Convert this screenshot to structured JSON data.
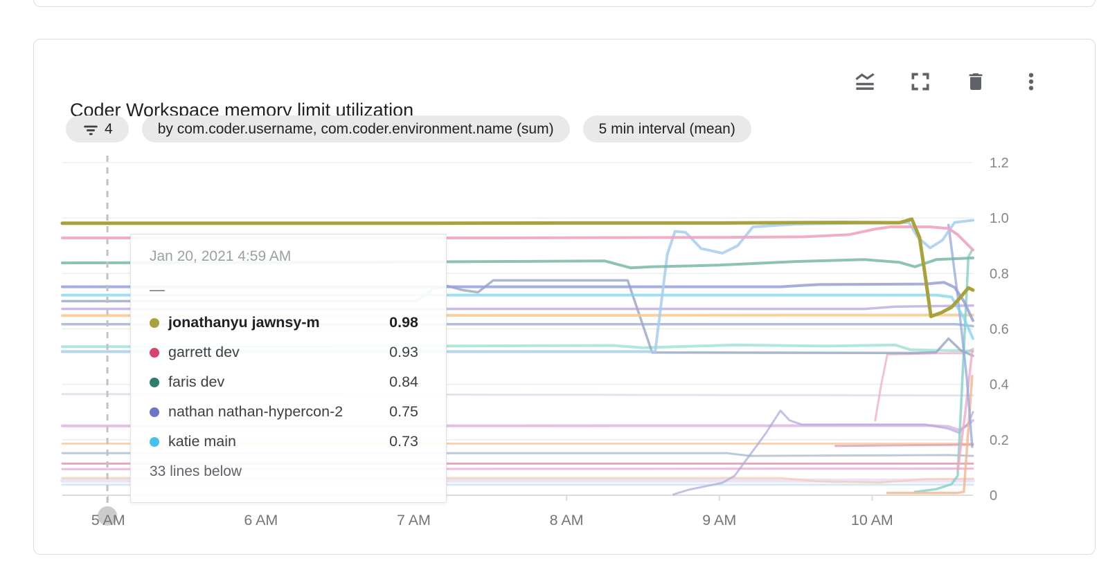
{
  "card": {
    "title": "Coder Workspace memory limit utilization",
    "chips": {
      "filter_count": "4",
      "group_by": "by com.coder.username, com.coder.environment.name (sum)",
      "interval": "5 min interval (mean)"
    },
    "toolbar": {
      "icons": [
        "chart-type-icon",
        "fullscreen-icon",
        "trash-icon",
        "more-vert-icon"
      ],
      "icon_color": "#5f6368"
    }
  },
  "tooltip": {
    "timestamp": "Jan 20, 2021 4:59 AM",
    "dash": "—",
    "rows": [
      {
        "label": "jonathanyu jawnsy-m",
        "value": "0.98",
        "color": "#a8a23c",
        "bold": true
      },
      {
        "label": "garrett dev",
        "value": "0.93",
        "color": "#d6446e",
        "bold": false
      },
      {
        "label": "faris dev",
        "value": "0.84",
        "color": "#2f7d6d",
        "bold": false
      },
      {
        "label": "nathan nathan-hypercon-2",
        "value": "0.75",
        "color": "#6a74c9",
        "bold": false
      },
      {
        "label": "katie main",
        "value": "0.73",
        "color": "#45c1f0",
        "bold": false
      }
    ],
    "footer": "33 lines below"
  },
  "chart_data": {
    "type": "line",
    "x_domain": [
      4.7,
      10.66
    ],
    "y_domain": [
      0,
      1.2
    ],
    "grid": true,
    "y_axis": {
      "side": "right",
      "ticks": [
        {
          "v": 0,
          "label": "0"
        },
        {
          "v": 0.2,
          "label": "0.2"
        },
        {
          "v": 0.4,
          "label": "0.4"
        },
        {
          "v": 0.6,
          "label": "0.6"
        },
        {
          "v": 0.8,
          "label": "0.8"
        },
        {
          "v": 1.0,
          "label": "1.0"
        },
        {
          "v": 1.2,
          "label": "1.2"
        }
      ]
    },
    "x_axis": {
      "ticks": [
        {
          "h": 5,
          "label": "5 AM"
        },
        {
          "h": 6,
          "label": "6 AM"
        },
        {
          "h": 7,
          "label": "7 AM"
        },
        {
          "h": 8,
          "label": "8 AM"
        },
        {
          "h": 9,
          "label": "9 AM"
        },
        {
          "h": 10,
          "label": "10 AM"
        }
      ]
    },
    "cursor": {
      "hour": 4.995,
      "style": "dashed"
    },
    "series": [
      {
        "name": "",
        "color": "#b9c3de",
        "width": 3,
        "opacity": 0.45,
        "points": [
          [
            4.7,
            0.365
          ],
          [
            10.66,
            0.36
          ]
        ]
      },
      {
        "name": "",
        "color": "#bcd9f2",
        "width": 3,
        "opacity": 0.6,
        "points": [
          [
            4.7,
            0.038
          ],
          [
            10.66,
            0.038
          ]
        ]
      },
      {
        "name": "",
        "color": "#d7cdf0",
        "width": 6,
        "opacity": 0.55,
        "points": [
          [
            4.7,
            0.053
          ],
          [
            10.66,
            0.053
          ]
        ]
      },
      {
        "name": "",
        "color": "#f6cdb4",
        "width": 3,
        "opacity": 0.8,
        "points": [
          [
            4.7,
            0.062
          ],
          [
            9.4,
            0.062
          ],
          [
            9.65,
            0.05
          ],
          [
            10.05,
            0.046
          ],
          [
            10.35,
            0.058
          ],
          [
            10.66,
            0.06
          ]
        ]
      },
      {
        "name": "",
        "color": "#eb9cd4",
        "width": 3,
        "opacity": 0.7,
        "points": [
          [
            4.7,
            0.094
          ],
          [
            10.66,
            0.096
          ]
        ]
      },
      {
        "name": "",
        "color": "#d486a0",
        "width": 3,
        "opacity": 0.7,
        "points": [
          [
            4.7,
            0.114
          ],
          [
            10.66,
            0.114
          ]
        ]
      },
      {
        "name": "",
        "color": "#a3b1cc",
        "width": 3,
        "opacity": 0.7,
        "points": [
          [
            4.7,
            0.152
          ],
          [
            9.05,
            0.152
          ],
          [
            9.2,
            0.142
          ],
          [
            10.5,
            0.145
          ],
          [
            10.66,
            0.142
          ]
        ]
      },
      {
        "name": "",
        "color": "#f6c89c",
        "width": 3,
        "opacity": 0.8,
        "points": [
          [
            4.7,
            0.186
          ],
          [
            10.66,
            0.186
          ]
        ]
      },
      {
        "name": "",
        "color": "#d890a8",
        "width": 3,
        "opacity": 0.7,
        "points": [
          [
            9.76,
            0.178
          ],
          [
            10.66,
            0.182
          ]
        ]
      },
      {
        "name": "",
        "color": "#d8a5da",
        "width": 4,
        "opacity": 0.7,
        "points": [
          [
            4.7,
            0.25
          ],
          [
            10.4,
            0.251
          ],
          [
            10.5,
            0.248
          ],
          [
            10.57,
            0.235
          ],
          [
            10.63,
            0.255
          ],
          [
            10.66,
            0.27
          ]
        ]
      },
      {
        "name": "",
        "color": "#a7a8dd",
        "width": 3,
        "opacity": 0.7,
        "points": [
          [
            8.7,
            0.003
          ],
          [
            8.8,
            0.02
          ],
          [
            9.02,
            0.045
          ],
          [
            9.1,
            0.07
          ],
          [
            9.3,
            0.22
          ],
          [
            9.4,
            0.305
          ],
          [
            9.46,
            0.27
          ],
          [
            9.54,
            0.255
          ],
          [
            10.35,
            0.255
          ],
          [
            10.5,
            0.24
          ],
          [
            10.57,
            0.225
          ],
          [
            10.63,
            0.26
          ],
          [
            10.66,
            0.3
          ]
        ]
      },
      {
        "name": "",
        "color": "#f0b0c8",
        "width": 3,
        "opacity": 0.8,
        "points": [
          [
            10.02,
            0.27
          ],
          [
            10.06,
            0.4
          ],
          [
            10.1,
            0.508
          ],
          [
            10.45,
            0.512
          ],
          [
            10.6,
            0.512
          ],
          [
            10.66,
            0.528
          ]
        ]
      },
      {
        "name": "",
        "color": "#93dfd2",
        "width": 4,
        "opacity": 0.75,
        "points": [
          [
            4.7,
            0.536
          ],
          [
            6.0,
            0.536
          ],
          [
            8.3,
            0.54
          ],
          [
            8.5,
            0.532
          ],
          [
            9.1,
            0.542
          ],
          [
            9.7,
            0.538
          ],
          [
            10.15,
            0.542
          ],
          [
            10.25,
            0.525
          ],
          [
            10.66,
            0.52
          ]
        ]
      },
      {
        "name": "",
        "color": "#8f9fbe",
        "width": 3.5,
        "opacity": 0.75,
        "points": [
          [
            4.7,
            0.7
          ],
          [
            7.02,
            0.7
          ],
          [
            7.12,
            0.742
          ],
          [
            7.22,
            0.755
          ],
          [
            7.32,
            0.74
          ],
          [
            7.42,
            0.732
          ],
          [
            7.52,
            0.775
          ],
          [
            8.4,
            0.775
          ],
          [
            8.56,
            0.515
          ],
          [
            10.25,
            0.513
          ],
          [
            10.42,
            0.516
          ],
          [
            10.5,
            0.565
          ],
          [
            10.58,
            0.523
          ],
          [
            10.66,
            0.503
          ]
        ]
      },
      {
        "name": "",
        "color": "#96aacf",
        "width": 3.5,
        "opacity": 0.75,
        "points": [
          [
            4.7,
            0.617
          ],
          [
            10.55,
            0.617
          ],
          [
            10.66,
            0.61
          ]
        ]
      },
      {
        "name": "",
        "color": "#f8c98e",
        "width": 4,
        "opacity": 0.85,
        "points": [
          [
            4.7,
            0.648
          ],
          [
            10.66,
            0.65
          ]
        ]
      },
      {
        "name": "",
        "color": "#b39ddb",
        "width": 3.5,
        "opacity": 0.7,
        "points": [
          [
            4.7,
            0.672
          ],
          [
            9.95,
            0.672
          ],
          [
            10.15,
            0.68
          ],
          [
            10.66,
            0.684
          ]
        ]
      },
      {
        "name": "",
        "color": "#82cfc6",
        "width": 3.5,
        "opacity": 0.8,
        "points": [
          [
            10.28,
            0.012
          ],
          [
            10.42,
            0.022
          ],
          [
            10.52,
            0.04
          ],
          [
            10.56,
            0.07
          ],
          [
            10.63,
            0.86
          ],
          [
            10.655,
            0.885
          ]
        ]
      },
      {
        "name": "",
        "color": "#f3b68c",
        "width": 3.5,
        "opacity": 0.8,
        "points": [
          [
            10.1,
            0.008
          ],
          [
            10.55,
            0.008
          ],
          [
            10.6,
            0.012
          ],
          [
            10.655,
            0.43
          ]
        ]
      },
      {
        "name": "",
        "color": "#eeaac6",
        "width": 3.5,
        "opacity": 0.8,
        "points": [
          [
            10.56,
            0.09
          ],
          [
            10.61,
            0.3
          ],
          [
            10.655,
            0.52
          ]
        ]
      },
      {
        "name": "",
        "color": "#93a7e0",
        "width": 3.5,
        "opacity": 0.75,
        "points": [
          [
            10.5,
            0.975
          ],
          [
            10.56,
            0.72
          ],
          [
            10.62,
            0.42
          ],
          [
            10.655,
            0.175
          ]
        ]
      },
      {
        "name": "katie main",
        "color": "#7fd4f0",
        "width": 4,
        "opacity": 0.75,
        "points": [
          [
            4.7,
            0.722
          ],
          [
            10.42,
            0.722
          ],
          [
            10.52,
            0.715
          ],
          [
            10.6,
            0.64
          ],
          [
            10.66,
            0.565
          ]
        ]
      },
      {
        "name": "nathan nathan-hypercon-2",
        "color": "#97a0d6",
        "width": 4,
        "opacity": 0.85,
        "points": [
          [
            4.7,
            0.752
          ],
          [
            9.4,
            0.752
          ],
          [
            9.65,
            0.76
          ],
          [
            10.35,
            0.762
          ],
          [
            10.47,
            0.768
          ],
          [
            10.54,
            0.75
          ],
          [
            10.6,
            0.7
          ],
          [
            10.66,
            0.63
          ]
        ]
      },
      {
        "name": "",
        "color": "#a8cdf0",
        "width": 4,
        "opacity": 0.85,
        "points": [
          [
            4.7,
            0.518
          ],
          [
            8.58,
            0.518
          ],
          [
            8.66,
            0.87
          ],
          [
            8.71,
            0.952
          ],
          [
            8.78,
            0.948
          ],
          [
            8.88,
            0.89
          ],
          [
            9.02,
            0.873
          ],
          [
            9.12,
            0.9
          ],
          [
            9.22,
            0.968
          ],
          [
            9.5,
            0.978
          ],
          [
            10.0,
            0.982
          ],
          [
            10.24,
            0.984
          ],
          [
            10.3,
            0.93
          ],
          [
            10.38,
            0.892
          ],
          [
            10.46,
            0.92
          ],
          [
            10.54,
            0.984
          ],
          [
            10.66,
            0.992
          ]
        ]
      },
      {
        "name": "faris dev",
        "color": "#79b8a8",
        "width": 4,
        "opacity": 0.85,
        "points": [
          [
            4.7,
            0.838
          ],
          [
            6.5,
            0.84
          ],
          [
            8.25,
            0.845
          ],
          [
            8.42,
            0.82
          ],
          [
            8.55,
            0.824
          ],
          [
            9.0,
            0.83
          ],
          [
            9.5,
            0.843
          ],
          [
            9.95,
            0.85
          ],
          [
            10.18,
            0.84
          ],
          [
            10.28,
            0.824
          ],
          [
            10.42,
            0.85
          ],
          [
            10.66,
            0.856
          ]
        ]
      },
      {
        "name": "garrett dev",
        "color": "#f2a3bf",
        "width": 4,
        "opacity": 0.9,
        "points": [
          [
            4.7,
            0.928
          ],
          [
            7.5,
            0.928
          ],
          [
            9.0,
            0.93
          ],
          [
            9.55,
            0.932
          ],
          [
            9.85,
            0.94
          ],
          [
            10.02,
            0.96
          ],
          [
            10.12,
            0.968
          ],
          [
            10.38,
            0.968
          ],
          [
            10.5,
            0.962
          ],
          [
            10.56,
            0.94
          ],
          [
            10.66,
            0.885
          ]
        ]
      },
      {
        "name": "jonathanyu jawnsy-m",
        "color": "#a8a23c",
        "width": 5,
        "opacity": 1,
        "points": [
          [
            4.7,
            0.981
          ],
          [
            6.0,
            0.981
          ],
          [
            7.0,
            0.981
          ],
          [
            8.0,
            0.982
          ],
          [
            9.0,
            0.982
          ],
          [
            9.8,
            0.984
          ],
          [
            10.18,
            0.983
          ],
          [
            10.26,
            0.996
          ],
          [
            10.31,
            0.93
          ],
          [
            10.34,
            0.82
          ],
          [
            10.385,
            0.645
          ],
          [
            10.45,
            0.658
          ],
          [
            10.52,
            0.678
          ],
          [
            10.58,
            0.715
          ],
          [
            10.63,
            0.748
          ],
          [
            10.66,
            0.74
          ]
        ]
      }
    ]
  }
}
